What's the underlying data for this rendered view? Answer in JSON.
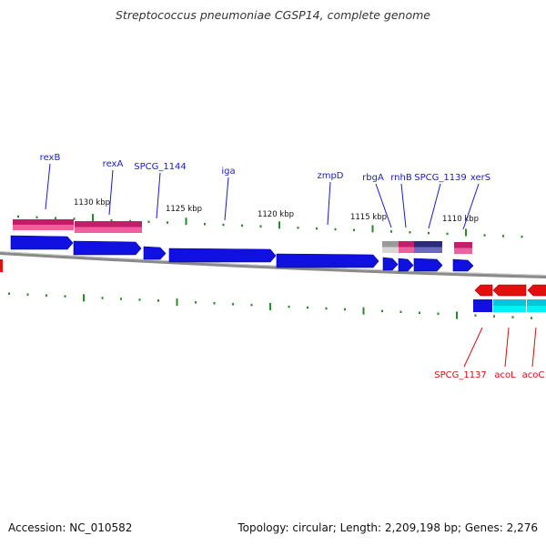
{
  "title": "Streptococcus pneumoniae CGSP14, complete genome",
  "footer": {
    "accession": "Accession: NC_010582",
    "topology": "Topology: circular; Length: 2,209,198 bp; Genes: 2,276"
  },
  "colors": {
    "forward_cds": "#1010e0",
    "reverse_cds": "#e01010",
    "forward_label": "#1a1ac8",
    "reverse_label": "#cc1111",
    "pink_feature": "#e8307f",
    "cyan_feature": "#00e5f0",
    "backbone": "#8a8a8a",
    "tick": "#2a8a2a"
  },
  "scale_labels": [
    "1130 kbp",
    "1125 kbp",
    "1120 kbp",
    "1115 kbp",
    "1110 kbp"
  ],
  "forward_genes": [
    "rexB",
    "rexA",
    "SPCG_1144",
    "iga",
    "zmpD",
    "rbgA",
    "rnhB",
    "SPCG_1139",
    "xerS"
  ],
  "reverse_genes": [
    "SPCG_1137",
    "acoL",
    "acoC"
  ]
}
